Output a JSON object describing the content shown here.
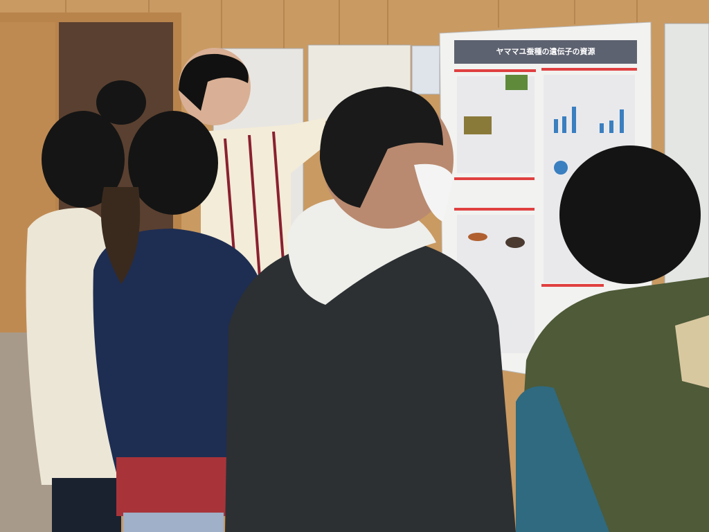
{
  "poster": {
    "title": "ヤママユ蚕種の遺伝子の資源"
  }
}
